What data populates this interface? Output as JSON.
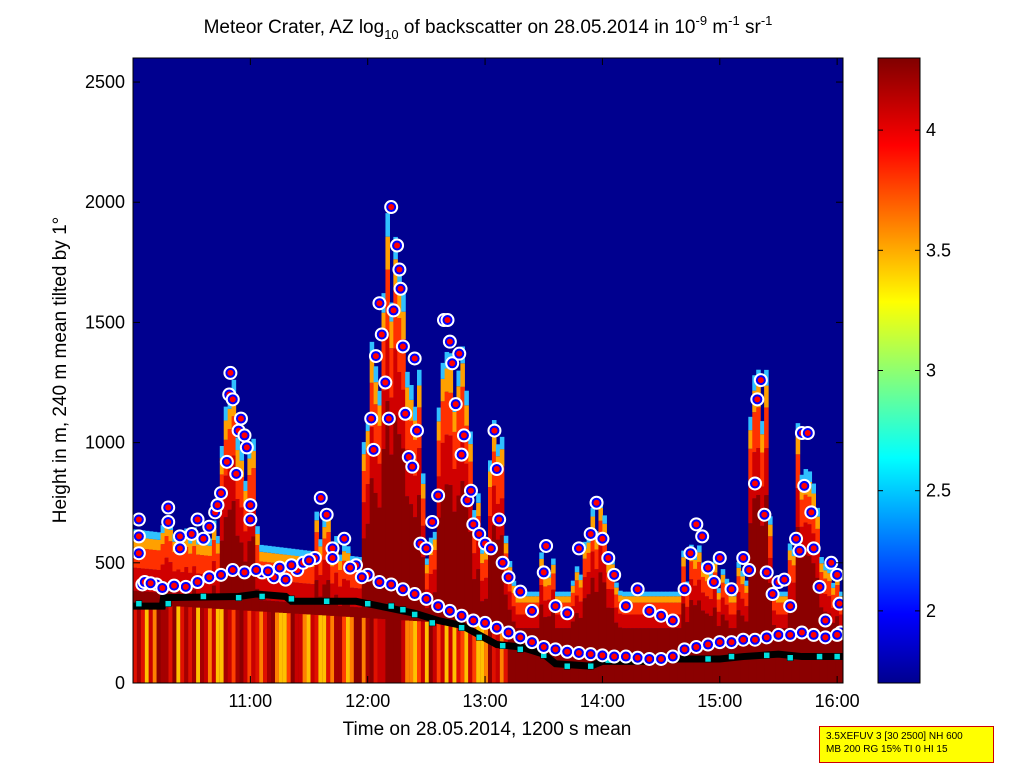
{
  "chart_data": {
    "type": "heatmap",
    "title": {
      "prefix": "Meteor Crater, AZ log",
      "sub": "10",
      "middle": " of backscatter on 28.05.2014 in 10",
      "sup1": "-9",
      "unit1": " m",
      "sup2": "-1",
      "unit2": " sr",
      "sup3": "-1"
    },
    "xlabel": "Time on 28.05.2014, 1200 s mean",
    "ylabel": "Height in m, 240 m mean tilted by 1°",
    "x_range_hours": [
      10.0,
      16.05
    ],
    "ylim": [
      0,
      2600
    ],
    "x_ticks": [
      {
        "value": 11,
        "label": "11:00"
      },
      {
        "value": 12,
        "label": "12:00"
      },
      {
        "value": 13,
        "label": "13:00"
      },
      {
        "value": 14,
        "label": "14:00"
      },
      {
        "value": 15,
        "label": "15:00"
      },
      {
        "value": 16,
        "label": "16:00"
      }
    ],
    "y_ticks": [
      0,
      500,
      1000,
      1500,
      2000,
      2500
    ],
    "colorbar": {
      "range": [
        1.7,
        4.3
      ],
      "ticks": [
        2,
        2.5,
        3,
        3.5,
        4
      ],
      "tick_labels": [
        "2",
        "2.5",
        "3",
        "3.5",
        "4"
      ],
      "colormap": "jet"
    },
    "series": [
      {
        "marker": "circle-blue-red-white",
        "points": [
          [
            10.05,
            680
          ],
          [
            10.05,
            610
          ],
          [
            10.05,
            540
          ],
          [
            10.08,
            410
          ],
          [
            10.2,
            410
          ],
          [
            10.3,
            730
          ],
          [
            10.3,
            670
          ],
          [
            10.4,
            610
          ],
          [
            10.4,
            560
          ],
          [
            10.45,
            400
          ],
          [
            10.5,
            620
          ],
          [
            10.55,
            680
          ],
          [
            10.6,
            600
          ],
          [
            10.65,
            650
          ],
          [
            10.7,
            710
          ],
          [
            10.72,
            740
          ],
          [
            10.75,
            790
          ],
          [
            10.8,
            920
          ],
          [
            10.82,
            1200
          ],
          [
            10.83,
            1290
          ],
          [
            10.85,
            1180
          ],
          [
            10.88,
            870
          ],
          [
            10.9,
            1050
          ],
          [
            10.92,
            1100
          ],
          [
            10.95,
            1030
          ],
          [
            10.97,
            980
          ],
          [
            11.0,
            740
          ],
          [
            11.0,
            680
          ],
          [
            11.1,
            460
          ],
          [
            11.2,
            440
          ],
          [
            11.3,
            430
          ],
          [
            11.4,
            470
          ],
          [
            11.45,
            500
          ],
          [
            11.55,
            520
          ],
          [
            11.6,
            770
          ],
          [
            11.65,
            700
          ],
          [
            11.7,
            560
          ],
          [
            11.8,
            600
          ],
          [
            11.9,
            490
          ],
          [
            12.0,
            450
          ],
          [
            12.03,
            1100
          ],
          [
            12.05,
            970
          ],
          [
            12.07,
            1360
          ],
          [
            12.1,
            1580
          ],
          [
            12.12,
            1450
          ],
          [
            12.15,
            1250
          ],
          [
            12.18,
            1100
          ],
          [
            12.2,
            1980
          ],
          [
            12.22,
            1550
          ],
          [
            12.25,
            1820
          ],
          [
            12.27,
            1720
          ],
          [
            12.28,
            1640
          ],
          [
            12.3,
            1400
          ],
          [
            12.32,
            1120
          ],
          [
            12.35,
            940
          ],
          [
            12.38,
            900
          ],
          [
            12.4,
            1350
          ],
          [
            12.42,
            1050
          ],
          [
            12.45,
            580
          ],
          [
            12.5,
            560
          ],
          [
            12.55,
            670
          ],
          [
            12.6,
            780
          ],
          [
            12.65,
            1510
          ],
          [
            12.68,
            1510
          ],
          [
            12.7,
            1420
          ],
          [
            12.72,
            1330
          ],
          [
            12.75,
            1160
          ],
          [
            12.78,
            1370
          ],
          [
            12.8,
            950
          ],
          [
            12.82,
            1030
          ],
          [
            12.85,
            760
          ],
          [
            12.88,
            800
          ],
          [
            12.9,
            660
          ],
          [
            12.95,
            620
          ],
          [
            13.0,
            580
          ],
          [
            13.05,
            560
          ],
          [
            13.08,
            1050
          ],
          [
            13.1,
            890
          ],
          [
            13.12,
            680
          ],
          [
            13.15,
            500
          ],
          [
            13.2,
            440
          ],
          [
            13.3,
            380
          ],
          [
            13.4,
            300
          ],
          [
            13.5,
            460
          ],
          [
            13.52,
            570
          ],
          [
            13.6,
            320
          ],
          [
            13.7,
            290
          ],
          [
            13.8,
            560
          ],
          [
            13.9,
            620
          ],
          [
            13.95,
            750
          ],
          [
            14.0,
            600
          ],
          [
            14.05,
            520
          ],
          [
            14.1,
            450
          ],
          [
            14.2,
            320
          ],
          [
            14.3,
            390
          ],
          [
            14.4,
            300
          ],
          [
            14.5,
            280
          ],
          [
            14.6,
            260
          ],
          [
            14.7,
            390
          ],
          [
            14.75,
            540
          ],
          [
            14.8,
            660
          ],
          [
            14.85,
            610
          ],
          [
            14.9,
            480
          ],
          [
            14.95,
            420
          ],
          [
            15.0,
            520
          ],
          [
            15.1,
            390
          ],
          [
            15.2,
            520
          ],
          [
            15.25,
            470
          ],
          [
            15.3,
            830
          ],
          [
            15.32,
            1180
          ],
          [
            15.35,
            1260
          ],
          [
            15.38,
            700
          ],
          [
            15.4,
            460
          ],
          [
            15.45,
            370
          ],
          [
            15.5,
            420
          ],
          [
            15.55,
            430
          ],
          [
            15.6,
            320
          ],
          [
            15.65,
            600
          ],
          [
            15.68,
            550
          ],
          [
            15.7,
            1040
          ],
          [
            15.72,
            820
          ],
          [
            15.75,
            1040
          ],
          [
            15.78,
            710
          ],
          [
            15.8,
            560
          ],
          [
            15.85,
            400
          ],
          [
            15.9,
            260
          ],
          [
            15.95,
            500
          ],
          [
            16.0,
            450
          ],
          [
            16.02,
            330
          ],
          [
            16.03,
            210
          ],
          [
            10.1,
            420
          ],
          [
            10.15,
            415
          ],
          [
            10.25,
            395
          ],
          [
            10.35,
            405
          ],
          [
            10.55,
            420
          ],
          [
            10.65,
            440
          ],
          [
            10.75,
            450
          ],
          [
            10.85,
            470
          ],
          [
            10.95,
            460
          ],
          [
            11.05,
            470
          ],
          [
            11.15,
            465
          ],
          [
            11.25,
            480
          ],
          [
            11.35,
            490
          ],
          [
            11.5,
            510
          ],
          [
            11.7,
            520
          ],
          [
            11.85,
            480
          ],
          [
            11.95,
            440
          ],
          [
            12.1,
            420
          ],
          [
            12.2,
            410
          ],
          [
            12.3,
            390
          ],
          [
            12.4,
            370
          ],
          [
            12.5,
            350
          ],
          [
            12.6,
            320
          ],
          [
            12.7,
            300
          ],
          [
            12.8,
            280
          ],
          [
            12.9,
            260
          ],
          [
            13.0,
            250
          ],
          [
            13.1,
            230
          ],
          [
            13.2,
            210
          ],
          [
            13.3,
            190
          ],
          [
            13.4,
            170
          ],
          [
            13.5,
            150
          ],
          [
            13.6,
            140
          ],
          [
            13.7,
            130
          ],
          [
            13.8,
            125
          ],
          [
            13.9,
            120
          ],
          [
            14.0,
            115
          ],
          [
            14.1,
            110
          ],
          [
            14.2,
            110
          ],
          [
            14.3,
            105
          ],
          [
            14.4,
            100
          ],
          [
            14.5,
            100
          ],
          [
            14.6,
            110
          ],
          [
            14.7,
            140
          ],
          [
            14.8,
            150
          ],
          [
            14.9,
            160
          ],
          [
            15.0,
            170
          ],
          [
            15.1,
            170
          ],
          [
            15.2,
            180
          ],
          [
            15.3,
            180
          ],
          [
            15.4,
            190
          ],
          [
            15.5,
            200
          ],
          [
            15.6,
            200
          ],
          [
            15.7,
            210
          ],
          [
            15.8,
            200
          ],
          [
            15.9,
            190
          ],
          [
            16.0,
            200
          ]
        ]
      },
      {
        "marker": "black-square-thick-line",
        "points": [
          [
            10.0,
            320
          ],
          [
            10.25,
            320
          ],
          [
            10.26,
            355
          ],
          [
            10.9,
            360
          ],
          [
            11.05,
            370
          ],
          [
            11.3,
            360
          ],
          [
            11.35,
            340
          ],
          [
            11.9,
            340
          ],
          [
            12.0,
            330
          ],
          [
            12.2,
            310
          ],
          [
            12.4,
            290
          ],
          [
            12.6,
            260
          ],
          [
            12.8,
            240
          ],
          [
            12.95,
            200
          ],
          [
            13.1,
            160
          ],
          [
            13.3,
            150
          ],
          [
            13.5,
            120
          ],
          [
            13.6,
            80
          ],
          [
            13.9,
            70
          ],
          [
            14.0,
            90
          ],
          [
            14.4,
            90
          ],
          [
            14.5,
            100
          ],
          [
            15.0,
            100
          ],
          [
            15.2,
            110
          ],
          [
            15.5,
            120
          ],
          [
            15.7,
            110
          ],
          [
            16.05,
            110
          ]
        ]
      },
      {
        "marker": "cyan-square",
        "points": [
          [
            10.05,
            330
          ],
          [
            10.3,
            330
          ],
          [
            10.6,
            360
          ],
          [
            10.9,
            355
          ],
          [
            11.1,
            360
          ],
          [
            11.35,
            350
          ],
          [
            11.65,
            340
          ],
          [
            12.0,
            330
          ],
          [
            12.2,
            320
          ],
          [
            12.3,
            305
          ],
          [
            12.4,
            285
          ],
          [
            12.55,
            250
          ],
          [
            12.8,
            230
          ],
          [
            12.95,
            190
          ],
          [
            13.15,
            155
          ],
          [
            13.3,
            140
          ],
          [
            13.5,
            115
          ],
          [
            13.7,
            70
          ],
          [
            13.9,
            70
          ],
          [
            14.05,
            95
          ],
          [
            14.3,
            95
          ],
          [
            14.6,
            100
          ],
          [
            14.9,
            100
          ],
          [
            15.1,
            110
          ],
          [
            15.4,
            115
          ],
          [
            15.6,
            105
          ],
          [
            15.85,
            110
          ],
          [
            16.0,
            110
          ]
        ]
      }
    ]
  },
  "info_box": {
    "line1": "3.5XEFUV 3 [30 2500] NH 600",
    "line2": "MB 200 RG 15% TI 0 HI 15"
  }
}
